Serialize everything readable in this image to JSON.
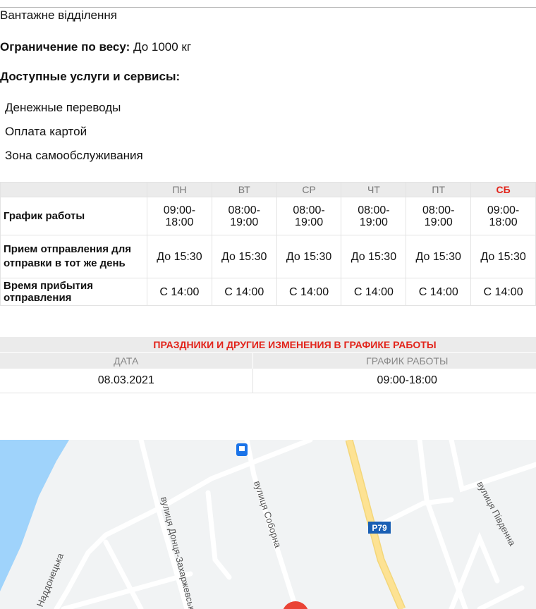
{
  "office_type": "Вантажне відділення",
  "weight_limit": {
    "label": "Ограничение по весу:",
    "value": "До 1000 кг"
  },
  "services": {
    "title": "Доступные услуги и сервисы:",
    "items": [
      "Денежные переводы",
      "Оплата картой",
      "Зона самообслуживания"
    ]
  },
  "schedule": {
    "days": [
      "ПН",
      "ВТ",
      "СР",
      "ЧТ",
      "ПТ",
      "СБ"
    ],
    "weekend_color": "#e2231a",
    "rows": [
      {
        "label": "График работы",
        "values": [
          "09:00-\n18:00",
          "08:00-\n19:00",
          "08:00-\n19:00",
          "08:00-\n19:00",
          "08:00-\n19:00",
          "09:00-\n18:00"
        ]
      },
      {
        "label": "Прием отправления для отправки в тот же день",
        "values": [
          "До 15:30",
          "До 15:30",
          "До 15:30",
          "До 15:30",
          "До 15:30",
          "До 15:30"
        ]
      },
      {
        "label": "Время прибытия отправления",
        "values": [
          "С 14:00",
          "С 14:00",
          "С 14:00",
          "С 14:00",
          "С 14:00",
          "С 14:00"
        ]
      }
    ]
  },
  "holidays": {
    "title": "ПРАЗДНИКИ И ДРУГИЕ ИЗМЕНЕНИЯ В ГРАФИКЕ РАБОТЫ",
    "col_date": "ДАТА",
    "col_schedule": "ГРАФИК РАБОТЫ",
    "rows": [
      {
        "date": "08.03.2021",
        "schedule": "09:00-18:00"
      }
    ]
  },
  "map": {
    "streets": [
      "вулиця Соборна",
      "вулиця Донця-Захаржевського",
      "Наддонецька",
      "вулиця Південна"
    ],
    "road_badge": "P79",
    "icons": [
      "bus-stop-icon",
      "location-pin-icon"
    ]
  }
}
